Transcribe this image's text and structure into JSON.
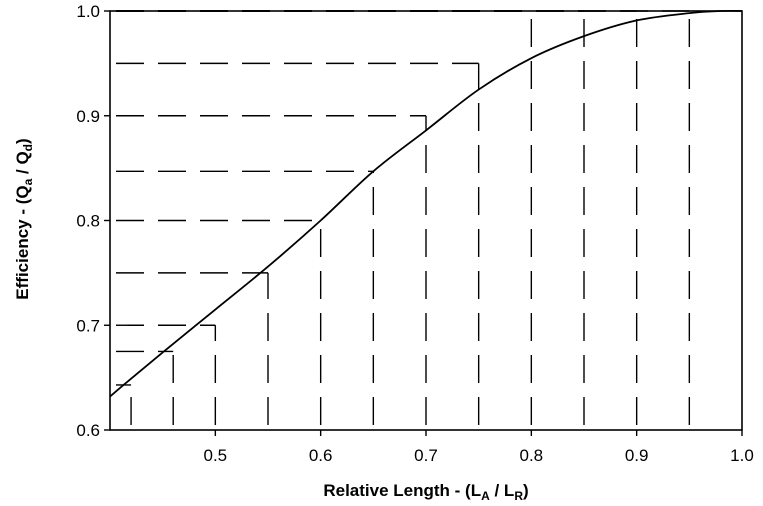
{
  "chart_data": {
    "type": "line",
    "xlabel": {
      "prefix": "Relative Length - (L",
      "sub1": "A",
      "mid": " / L",
      "sub2": "R",
      "suffix": ")"
    },
    "ylabel": {
      "prefix": "Efficiency - (Q",
      "sub1": "a",
      "mid": " / Q",
      "sub2": "d",
      "suffix": ")"
    },
    "xlim": [
      0.4,
      1.0
    ],
    "ylim": [
      0.6,
      1.0
    ],
    "xticks": [
      0.5,
      0.6,
      0.7,
      0.8,
      0.9,
      1.0
    ],
    "xtick_labels": [
      "0.5",
      "0.6",
      "0.7",
      "0.8",
      "0.9",
      "1.0"
    ],
    "yticks": [
      0.6,
      0.7,
      0.8,
      0.9,
      1.0
    ],
    "ytick_labels": [
      "0.6",
      "0.7",
      "0.8",
      "0.9",
      "1.0"
    ],
    "grid": false,
    "series": [
      {
        "x": [
          0.4,
          0.42,
          0.45,
          0.5,
          0.55,
          0.6,
          0.65,
          0.7,
          0.75,
          0.8,
          0.85,
          0.9,
          0.95,
          0.98,
          1.0
        ],
        "y": [
          0.632,
          0.649,
          0.674,
          0.715,
          0.756,
          0.8,
          0.847,
          0.886,
          0.925,
          0.955,
          0.976,
          0.991,
          0.998,
          1.0,
          1.0
        ],
        "color": "#000000"
      }
    ],
    "reference_lines": [
      {
        "x": 0.42,
        "y": 0.643
      },
      {
        "x": 0.46,
        "y": 0.675
      },
      {
        "x": 0.5,
        "y": 0.7
      },
      {
        "x": 0.55,
        "y": 0.75
      },
      {
        "x": 0.6,
        "y": 0.8
      },
      {
        "x": 0.65,
        "y": 0.847
      },
      {
        "x": 0.7,
        "y": 0.9
      },
      {
        "x": 0.75,
        "y": 0.95
      },
      {
        "x": 0.8,
        "y": 1.0
      },
      {
        "x": 0.85,
        "y": 1.0
      },
      {
        "x": 0.9,
        "y": 1.0
      },
      {
        "x": 0.95,
        "y": 1.0
      }
    ]
  }
}
